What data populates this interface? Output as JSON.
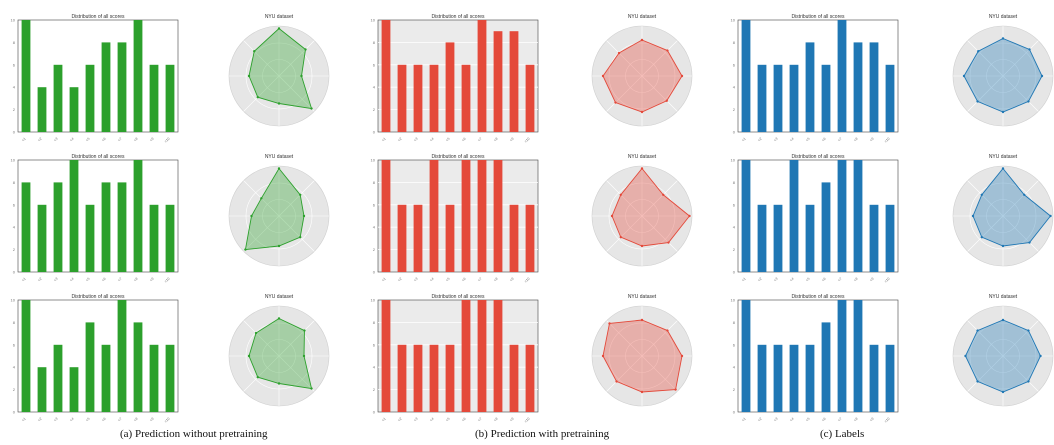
{
  "captions": {
    "a": "(a) Prediction without pretraining",
    "b": "(b) Prediction with pretraining",
    "c": "(c) Labels"
  },
  "colors": {
    "green": "#2ca02c",
    "red": "#e4493a",
    "blue": "#1f77b4",
    "radar_bg": "#e6e6e6",
    "bar_bg": "#ebebeb"
  },
  "chart_data": [
    {
      "type": "bar",
      "group": "a",
      "row": 0,
      "color": "#2ca02c",
      "bg": false,
      "title": "Distribution of all scores",
      "categories": [
        "c1",
        "c2",
        "c3",
        "c4",
        "c5",
        "c6",
        "c7",
        "c8",
        "c9",
        "c10"
      ],
      "values": [
        10,
        4,
        6,
        4,
        6,
        8,
        8,
        10,
        6,
        6
      ],
      "ylim": [
        0,
        10
      ]
    },
    {
      "type": "radar",
      "group": "a",
      "row": 0,
      "color": "#2ca02c",
      "title": "NYU dataset",
      "values": [
        0.95,
        0.75,
        0.45,
        0.92,
        0.55,
        0.6,
        0.6,
        0.7
      ]
    },
    {
      "type": "bar",
      "group": "b",
      "row": 0,
      "color": "#e4493a",
      "bg": true,
      "title": "Distribution of all scores",
      "categories": [
        "c1",
        "c2",
        "c3",
        "c4",
        "c5",
        "c6",
        "c7",
        "c8",
        "c9",
        "c10"
      ],
      "values": [
        10,
        6,
        6,
        6,
        8,
        6,
        10,
        9,
        9,
        6
      ],
      "ylim": [
        0,
        10
      ]
    },
    {
      "type": "radar",
      "group": "b",
      "row": 0,
      "color": "#e4493a",
      "title": "NYU dataset",
      "values": [
        0.72,
        0.72,
        0.8,
        0.7,
        0.72,
        0.75,
        0.78,
        0.65
      ]
    },
    {
      "type": "bar",
      "group": "c",
      "row": 0,
      "color": "#1f77b4",
      "bg": false,
      "title": "Distribution of all scores",
      "categories": [
        "c1",
        "c2",
        "c3",
        "c4",
        "c5",
        "c6",
        "c7",
        "c8",
        "c9",
        "c10"
      ],
      "values": [
        10,
        6,
        6,
        6,
        8,
        6,
        10,
        8,
        8,
        6
      ],
      "ylim": [
        0,
        10
      ]
    },
    {
      "type": "radar",
      "group": "c",
      "row": 0,
      "color": "#1f77b4",
      "title": "NYU dataset",
      "values": [
        0.75,
        0.75,
        0.78,
        0.72,
        0.72,
        0.72,
        0.78,
        0.7
      ]
    },
    {
      "type": "bar",
      "group": "a",
      "row": 1,
      "color": "#2ca02c",
      "bg": false,
      "title": "Distribution of all scores",
      "categories": [
        "c1",
        "c2",
        "c3",
        "c4",
        "c5",
        "c6",
        "c7",
        "c8",
        "c9",
        "c10"
      ],
      "values": [
        8,
        6,
        8,
        10,
        6,
        8,
        8,
        10,
        6,
        6
      ],
      "ylim": [
        0,
        10
      ]
    },
    {
      "type": "radar",
      "group": "a",
      "row": 1,
      "color": "#2ca02c",
      "title": "NYU dataset",
      "values": [
        0.95,
        0.6,
        0.5,
        0.6,
        0.6,
        0.95,
        0.55,
        0.5
      ]
    },
    {
      "type": "bar",
      "group": "b",
      "row": 1,
      "color": "#e4493a",
      "bg": true,
      "title": "Distribution of all scores",
      "categories": [
        "c1",
        "c2",
        "c3",
        "c4",
        "c5",
        "c6",
        "c7",
        "c8",
        "c9",
        "c10"
      ],
      "values": [
        10,
        6,
        6,
        10,
        6,
        10,
        10,
        10,
        6,
        6
      ],
      "ylim": [
        0,
        10
      ]
    },
    {
      "type": "radar",
      "group": "b",
      "row": 1,
      "color": "#e4493a",
      "title": "NYU dataset",
      "values": [
        0.95,
        0.6,
        0.95,
        0.75,
        0.6,
        0.6,
        0.6,
        0.6
      ]
    },
    {
      "type": "bar",
      "group": "c",
      "row": 1,
      "color": "#1f77b4",
      "bg": false,
      "title": "Distribution of all scores",
      "categories": [
        "c1",
        "c2",
        "c3",
        "c4",
        "c5",
        "c6",
        "c7",
        "c8",
        "c9",
        "c10"
      ],
      "values": [
        10,
        6,
        6,
        10,
        6,
        8,
        10,
        10,
        6,
        6
      ],
      "ylim": [
        0,
        10
      ]
    },
    {
      "type": "radar",
      "group": "c",
      "row": 1,
      "color": "#1f77b4",
      "title": "NYU dataset",
      "values": [
        0.95,
        0.6,
        0.95,
        0.75,
        0.6,
        0.6,
        0.6,
        0.6
      ]
    },
    {
      "type": "bar",
      "group": "a",
      "row": 2,
      "color": "#2ca02c",
      "bg": false,
      "title": "Distribution of all scores",
      "categories": [
        "c1",
        "c2",
        "c3",
        "c4",
        "c5",
        "c6",
        "c7",
        "c8",
        "c9",
        "c10"
      ],
      "values": [
        10,
        4,
        6,
        4,
        8,
        6,
        10,
        8,
        6,
        6
      ],
      "ylim": [
        0,
        10
      ]
    },
    {
      "type": "radar",
      "group": "a",
      "row": 2,
      "color": "#2ca02c",
      "title": "NYU dataset",
      "values": [
        0.75,
        0.72,
        0.5,
        0.92,
        0.55,
        0.6,
        0.6,
        0.65
      ]
    },
    {
      "type": "bar",
      "group": "b",
      "row": 2,
      "color": "#e4493a",
      "bg": true,
      "title": "Distribution of all scores",
      "categories": [
        "c1",
        "c2",
        "c3",
        "c4",
        "c5",
        "c6",
        "c7",
        "c8",
        "c9",
        "c10"
      ],
      "values": [
        10,
        6,
        6,
        6,
        6,
        10,
        10,
        10,
        6,
        6
      ],
      "ylim": [
        0,
        10
      ]
    },
    {
      "type": "radar",
      "group": "b",
      "row": 2,
      "color": "#e4493a",
      "title": "NYU dataset",
      "values": [
        0.72,
        0.72,
        0.8,
        0.95,
        0.72,
        0.72,
        0.78,
        0.92
      ]
    },
    {
      "type": "bar",
      "group": "c",
      "row": 2,
      "color": "#1f77b4",
      "bg": false,
      "title": "Distribution of all scores",
      "categories": [
        "c1",
        "c2",
        "c3",
        "c4",
        "c5",
        "c6",
        "c7",
        "c8",
        "c9",
        "c10"
      ],
      "values": [
        10,
        6,
        6,
        6,
        6,
        8,
        10,
        10,
        6,
        6
      ],
      "ylim": [
        0,
        10
      ]
    },
    {
      "type": "radar",
      "group": "c",
      "row": 2,
      "color": "#1f77b4",
      "title": "NYU dataset",
      "values": [
        0.72,
        0.72,
        0.75,
        0.72,
        0.72,
        0.72,
        0.75,
        0.72
      ]
    }
  ]
}
